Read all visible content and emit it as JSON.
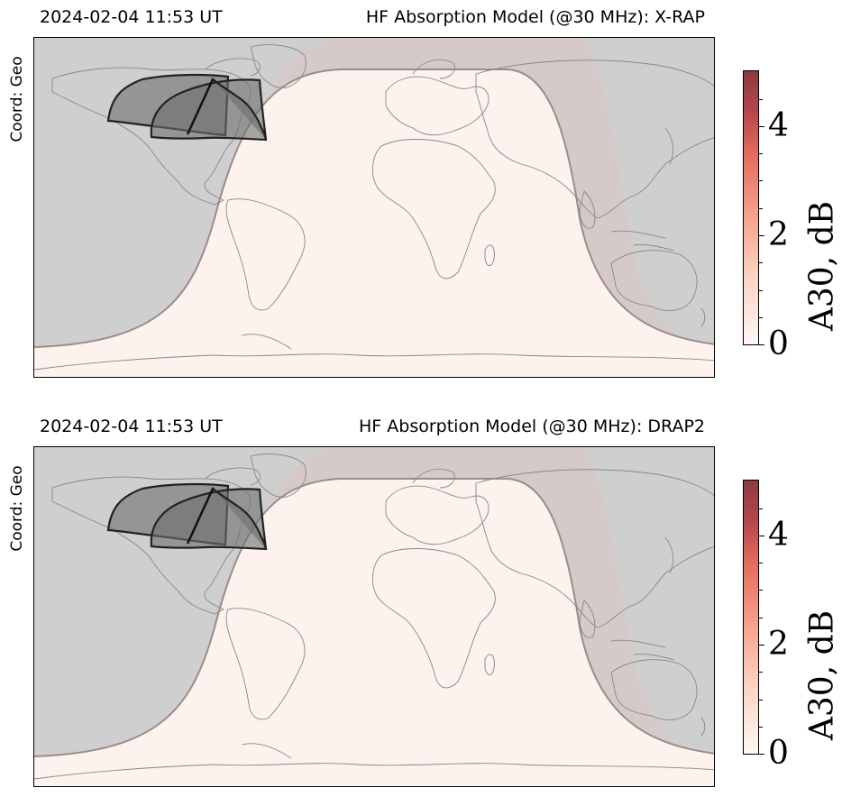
{
  "panels": [
    {
      "timestamp": "2024-02-04 11:53 UT",
      "title": "HF Absorption Model (@30 MHz): X-RAP",
      "coord_label": "Coord: Geo",
      "colorbar": {
        "label": "A30, dB",
        "ticks": [
          "0",
          "2",
          "4"
        ],
        "vmin": 0,
        "vmax": 5
      }
    },
    {
      "timestamp": "2024-02-04 11:53 UT",
      "title": "HF Absorption Model (@30 MHz): DRAP2",
      "coord_label": "Coord: Geo",
      "colorbar": {
        "label": "A30, dB",
        "ticks": [
          "0",
          "2",
          "4"
        ],
        "vmin": 0,
        "vmax": 5
      }
    }
  ],
  "colors": {
    "night": "#cfcfcf",
    "twilight": "#d4c8c6",
    "day": "#fdf2ee",
    "terminator": "#9b8c8a",
    "coastline": "#888888",
    "fov_fill": "#6e6e6e",
    "colormap_low": "#fff6f3",
    "colormap_high": "#8b3b42"
  }
}
